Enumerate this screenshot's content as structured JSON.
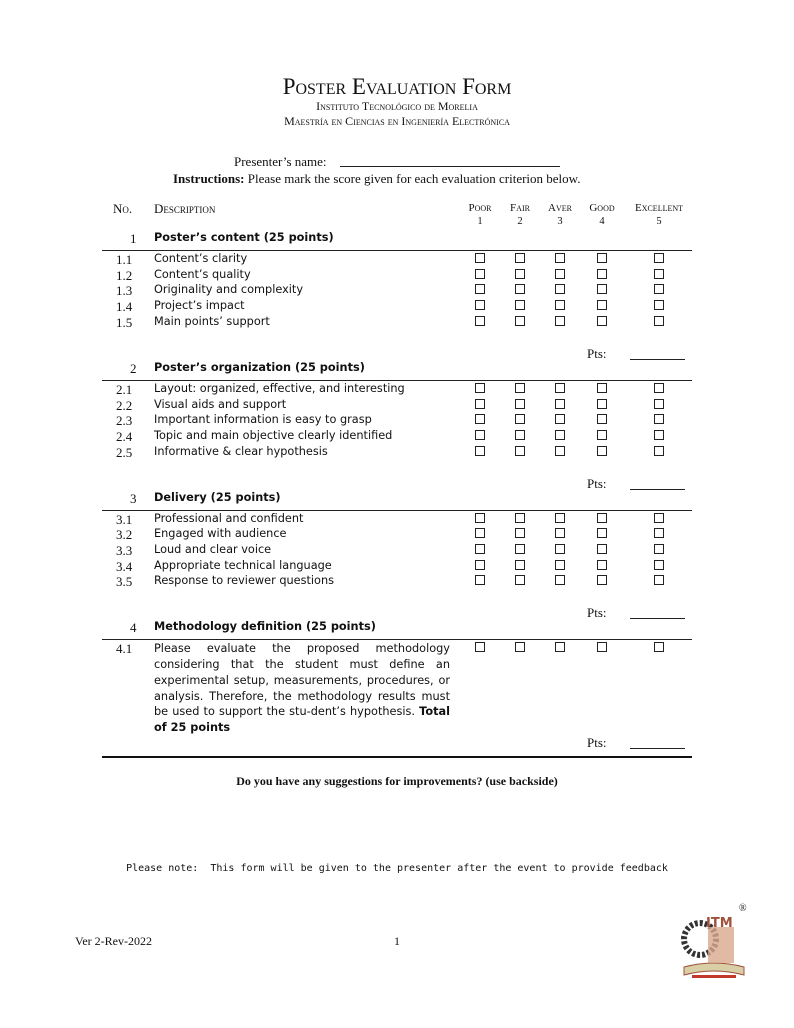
{
  "header": {
    "title": "Poster Evaluation Form",
    "institute": "Instituto Tecnológico de Morelia",
    "program": "Maestría en Ciencias en Ingeniería Electrónica",
    "presenter_label": "Presenter’s name:",
    "instructions_bold": "Instructions:",
    "instructions_text": "Please mark the score given for each evaluation criterion below."
  },
  "table": {
    "col_no": "No.",
    "col_description": "Description",
    "scores": [
      {
        "label": "Poor",
        "value": "1"
      },
      {
        "label": "Fair",
        "value": "2"
      },
      {
        "label": "Aver",
        "value": "3"
      },
      {
        "label": "Good",
        "value": "4"
      },
      {
        "label": "Excellent",
        "value": "5"
      }
    ],
    "pts_label": "Pts:",
    "sections": [
      {
        "no": "1",
        "title": "Poster’s content (25 points)",
        "items": [
          {
            "no": "1.1",
            "text": "Content’s clarity"
          },
          {
            "no": "1.2",
            "text": "Content’s quality"
          },
          {
            "no": "1.3",
            "text": "Originality and complexity"
          },
          {
            "no": "1.4",
            "text": "Project’s impact"
          },
          {
            "no": "1.5",
            "text": "Main points’ support"
          }
        ]
      },
      {
        "no": "2",
        "title": "Poster’s organization (25 points)",
        "items": [
          {
            "no": "2.1",
            "text": "Layout: organized, effective, and interesting"
          },
          {
            "no": "2.2",
            "text": "Visual aids and support"
          },
          {
            "no": "2.3",
            "text": "Important information is easy to grasp"
          },
          {
            "no": "2.4",
            "text": "Topic and main objective clearly identified"
          },
          {
            "no": "2.5",
            "text": "Informative & clear hypothesis"
          }
        ]
      },
      {
        "no": "3",
        "title": "Delivery (25 points)",
        "items": [
          {
            "no": "3.1",
            "text": "Professional and confident"
          },
          {
            "no": "3.2",
            "text": "Engaged with audience"
          },
          {
            "no": "3.3",
            "text": "Loud and clear voice"
          },
          {
            "no": "3.4",
            "text": "Appropriate technical language"
          },
          {
            "no": "3.5",
            "text": "Response to reviewer questions"
          }
        ]
      },
      {
        "no": "4",
        "title": "Methodology definition (25 points)",
        "items": [
          {
            "no": "4.1",
            "text": "Please evaluate the proposed methodology considering that the student must define an experimental setup, measurements, procedures, or analysis. Therefore, the methodology results must be used to support the stu-dent’s hypothesis.",
            "bold_suffix": "Total of 25 points",
            "lines": 5
          }
        ]
      }
    ]
  },
  "suggestions": "Do you have any suggestions for improvements? (use backside)",
  "note": "Please note:  This form will be given to the presenter after the event to provide feedback",
  "footer": {
    "version": "Ver 2-Rev-2022",
    "page": "1",
    "logo_text": "ITM",
    "registered": "®"
  }
}
